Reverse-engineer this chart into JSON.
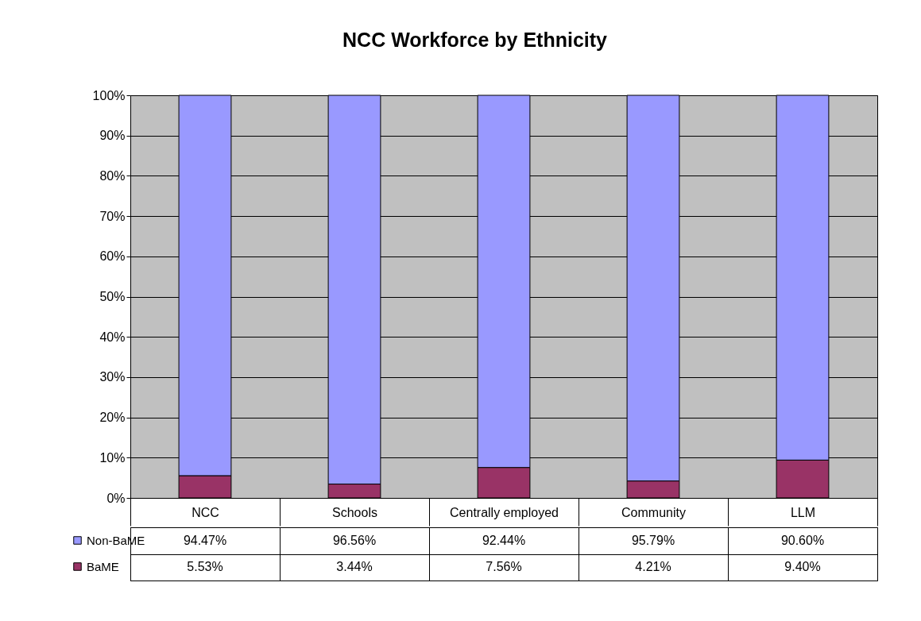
{
  "chart_data": {
    "type": "bar",
    "title": "NCC Workforce by Ethnicity",
    "stacked": true,
    "categories": [
      "NCC",
      "Schools",
      "Centrally employed",
      "Community",
      "LLM"
    ],
    "series": [
      {
        "name": "BaME",
        "color": "#993366",
        "values": [
          5.53,
          3.44,
          7.56,
          4.21,
          9.4
        ],
        "value_labels": [
          "5.53%",
          "3.44%",
          "7.56%",
          "4.21%",
          "9.40%"
        ]
      },
      {
        "name": "Non-BaME",
        "color": "#9999ff",
        "values": [
          94.47,
          96.56,
          92.44,
          95.79,
          90.6
        ],
        "value_labels": [
          "94.47%",
          "96.56%",
          "92.44%",
          "95.79%",
          "90.60%"
        ]
      }
    ],
    "ylim": [
      0,
      100
    ],
    "yticks": [
      {
        "value": 0,
        "label": "0%"
      },
      {
        "value": 10,
        "label": "10%"
      },
      {
        "value": 20,
        "label": "20%"
      },
      {
        "value": 30,
        "label": "30%"
      },
      {
        "value": 40,
        "label": "40%"
      },
      {
        "value": 50,
        "label": "50%"
      },
      {
        "value": 60,
        "label": "60%"
      },
      {
        "value": 70,
        "label": "70%"
      },
      {
        "value": 80,
        "label": "80%"
      },
      {
        "value": 90,
        "label": "90%"
      },
      {
        "value": 100,
        "label": "100%"
      }
    ],
    "grid": "y",
    "legend": "bottom left"
  }
}
